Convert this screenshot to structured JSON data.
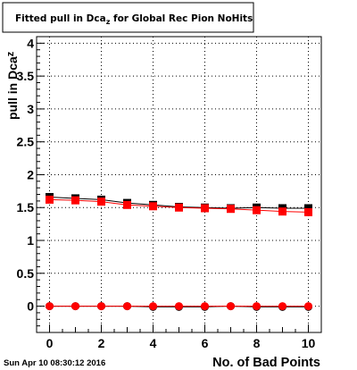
{
  "title_main": "Fitted pull in Dca",
  "title_sub": "z",
  "title_rest": " for Global Rec Pion NoHits",
  "ylabel_main": "pull in Dca",
  "ylabel_sub": "z",
  "timestamp": "Sun Apr 10 08:30:12 2016",
  "chart_data": {
    "type": "scatter",
    "title": "Fitted pull in Dca_z for Global Rec Pion NoHits",
    "xlabel": "No. of Bad Points",
    "ylabel": "pull in Dca_z",
    "xlim": [
      -0.5,
      10.5
    ],
    "ylim": [
      -0.4,
      4.1
    ],
    "xticks": [
      0,
      2,
      4,
      6,
      8,
      10
    ],
    "xtick_labels": [
      "0",
      "2",
      "4",
      "6",
      "8",
      "10"
    ],
    "yticks": [
      0,
      0.5,
      1,
      1.5,
      2,
      2.5,
      3,
      3.5,
      4
    ],
    "ytick_labels": [
      "0",
      "0.5",
      "1",
      "1.5",
      "2",
      "2.5",
      "3",
      "3.5",
      "4"
    ],
    "grid": true,
    "x": [
      0,
      1,
      2,
      3,
      4,
      5,
      6,
      7,
      8,
      9,
      10
    ],
    "series": [
      {
        "marker": "square",
        "color": "#000000",
        "values": [
          1.66,
          1.64,
          1.62,
          1.57,
          1.54,
          1.51,
          1.5,
          1.49,
          1.5,
          1.49,
          1.49
        ],
        "errors": [
          0.02,
          0.02,
          0.02,
          0.02,
          0.02,
          0.02,
          0.02,
          0.02,
          0.02,
          0.02,
          0.02
        ]
      },
      {
        "marker": "square",
        "color": "#ff0000",
        "values": [
          1.62,
          1.61,
          1.59,
          1.54,
          1.52,
          1.5,
          1.49,
          1.48,
          1.46,
          1.44,
          1.43
        ],
        "errors": [
          0.02,
          0.02,
          0.02,
          0.02,
          0.02,
          0.02,
          0.02,
          0.02,
          0.02,
          0.02,
          0.02
        ]
      },
      {
        "marker": "circle",
        "color": "#000000",
        "values": [
          0.0,
          0.0,
          0.0,
          0.0,
          -0.01,
          -0.01,
          -0.01,
          0.0,
          -0.01,
          -0.01,
          -0.01
        ],
        "errors": [
          0.01,
          0.01,
          0.01,
          0.01,
          0.01,
          0.01,
          0.01,
          0.01,
          0.01,
          0.01,
          0.01
        ]
      },
      {
        "marker": "circle",
        "color": "#ff0000",
        "values": [
          0.0,
          0.0,
          0.0,
          0.0,
          0.0,
          0.0,
          0.0,
          0.0,
          0.0,
          0.0,
          0.0
        ],
        "errors": [
          0.01,
          0.01,
          0.01,
          0.01,
          0.01,
          0.01,
          0.01,
          0.01,
          0.01,
          0.01,
          0.01
        ]
      }
    ]
  }
}
